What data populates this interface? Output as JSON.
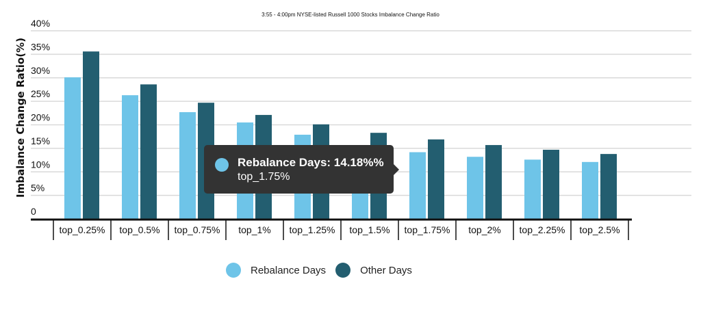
{
  "chart_data": {
    "type": "bar",
    "title": "3:55 - 4:00pm NYSE-listed Russell 1000 Stocks Imbalance Change Ratio",
    "xlabel": "",
    "ylabel": "Imbalance Change Ratio(%)",
    "ylim": [
      0,
      40
    ],
    "yticks": [
      "0",
      "5%",
      "10%",
      "15%",
      "20%",
      "25%",
      "30%",
      "35%",
      "40%"
    ],
    "ytick_values": [
      0,
      5,
      10,
      15,
      20,
      25,
      30,
      35,
      40
    ],
    "grid": true,
    "legend_position": "bottom",
    "categories": [
      "top_0.25%",
      "top_0.5%",
      "top_0.75%",
      "top_1%",
      "top_1.25%",
      "top_1.5%",
      "top_1.75%",
      "top_2%",
      "top_2.25%",
      "top_2.5%"
    ],
    "series": [
      {
        "name": "Rebalance Days",
        "color": "#6ec4e8",
        "values": [
          30.1,
          26.3,
          22.7,
          20.5,
          17.9,
          15.5,
          14.18,
          13.2,
          12.6,
          12.1
        ]
      },
      {
        "name": "Other Days",
        "color": "#235e70",
        "values": [
          35.6,
          28.6,
          24.7,
          22.1,
          20.1,
          18.3,
          16.9,
          15.7,
          14.7,
          13.8
        ]
      }
    ]
  },
  "tooltip": {
    "line1": "Rebalance Days: 14.18%%",
    "line2": "top_1.75%"
  }
}
